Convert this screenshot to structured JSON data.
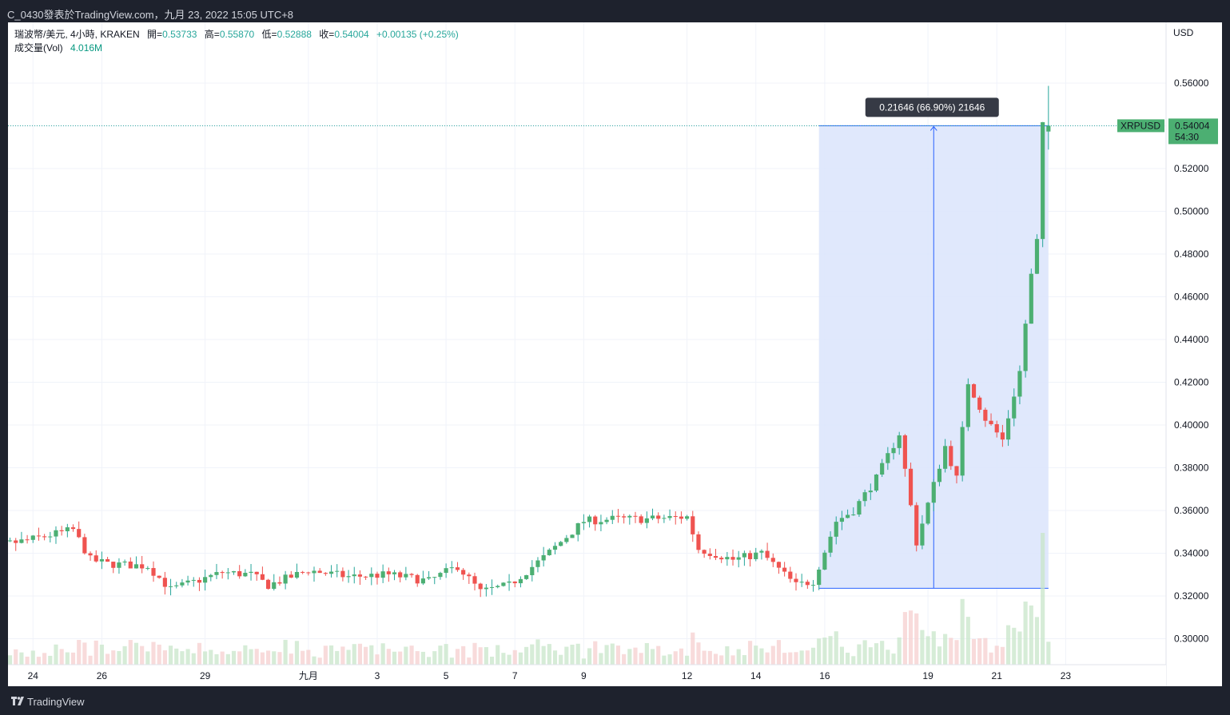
{
  "header": {
    "publisher_line": "C_0430發表於TradingView.com，九月 23, 2022 15:05 UTC+8"
  },
  "legend": {
    "symbol_line": "瑞波幣/美元, 4小時, KRAKEN",
    "open_label": "開=",
    "open": "0.53733",
    "high_label": "高=",
    "high": "0.55870",
    "low_label": "低=",
    "low": "0.52888",
    "close_label": "收=",
    "close": "0.54004",
    "change": "+0.00135 (+0.25%)",
    "volume_label": "成交量(Vol)",
    "volume": "4.016M"
  },
  "axis": {
    "currency": "USD",
    "price_ticks": [
      "0.56000",
      "0.54000",
      "0.52000",
      "0.50000",
      "0.48000",
      "0.46000",
      "0.44000",
      "0.42000",
      "0.40000",
      "0.38000",
      "0.36000",
      "0.34000",
      "0.32000",
      "0.30000"
    ],
    "date_ticks": [
      "24",
      "26",
      "29",
      "九月",
      "3",
      "5",
      "7",
      "9",
      "12",
      "14",
      "16",
      "19",
      "21",
      "23"
    ]
  },
  "price_tag": {
    "symbol": "XRPUSD",
    "price": "0.54004",
    "countdown": "54:30"
  },
  "measure": {
    "label": "0.21646 (66.90%) 21646",
    "from": 0.32358,
    "to": 0.54004
  },
  "footer": {
    "brand": "TradingView"
  },
  "colors": {
    "up": "#26a69a",
    "down": "#ef5350",
    "up_body": "#4caf72",
    "measure_fill": "#dbe4fb",
    "measure_line": "#2962ff"
  },
  "chart_data": {
    "type": "candlestick",
    "timeframe": "4h",
    "y_range": [
      0.285,
      0.57
    ],
    "x_range": [
      "Aug 23",
      "Sep 23"
    ],
    "waypoints": [
      [
        "Aug 23 04:00",
        0.341
      ],
      [
        "Aug 25 00:00",
        0.346
      ],
      [
        "Aug 26 08:00",
        0.351
      ],
      [
        "Aug 26 20:00",
        0.337
      ],
      [
        "Aug 27 08:00",
        0.335
      ],
      [
        "Aug 28 12:00",
        0.334
      ],
      [
        "Aug 29 04:00",
        0.323
      ],
      [
        "Aug 30 16:00",
        0.331
      ],
      [
        "Aug 31 12:00",
        0.33
      ],
      [
        "Sep 01 00:00",
        0.325
      ],
      [
        "Sep 02 04:00",
        0.332
      ],
      [
        "Sep 03 08:00",
        0.329
      ],
      [
        "Sep 04 12:00",
        0.33
      ],
      [
        "Sep 05 16:00",
        0.327
      ],
      [
        "Sep 06 12:00",
        0.334
      ],
      [
        "Sep 07 04:00",
        0.322
      ],
      [
        "Sep 08 00:00",
        0.325
      ],
      [
        "Sep 09 00:00",
        0.338
      ],
      [
        "Sep 10 04:00",
        0.355
      ],
      [
        "Sep 11 00:00",
        0.356
      ],
      [
        "Sep 12 00:00",
        0.356
      ],
      [
        "Sep 13 04:00",
        0.357
      ],
      [
        "Sep 13 12:00",
        0.342
      ],
      [
        "Sep 14 12:00",
        0.337
      ],
      [
        "Sep 15 08:00",
        0.34
      ],
      [
        "Sep 16 08:00",
        0.325
      ],
      [
        "Sep 16 20:00",
        0.327
      ],
      [
        "Sep 17 12:00",
        0.355
      ],
      [
        "Sep 18 00:00",
        0.36
      ],
      [
        "Sep 18 16:00",
        0.375
      ],
      [
        "Sep 19 08:00",
        0.396
      ],
      [
        "Sep 19 20:00",
        0.345
      ],
      [
        "Sep 20 16:00",
        0.39
      ],
      [
        "Sep 21 00:00",
        0.375
      ],
      [
        "Sep 21 08:00",
        0.42
      ],
      [
        "Sep 21 20:00",
        0.403
      ],
      [
        "Sep 22 08:00",
        0.393
      ],
      [
        "Sep 22 20:00",
        0.425
      ],
      [
        "Sep 23 04:00",
        0.47
      ],
      [
        "Sep 23 08:00",
        0.486
      ],
      [
        "Sep 23 12:00",
        0.54
      ]
    ],
    "last_candle": {
      "open": 0.53733,
      "high": 0.5587,
      "low": 0.52888,
      "close": 0.54004,
      "volume": "4.016M"
    }
  }
}
